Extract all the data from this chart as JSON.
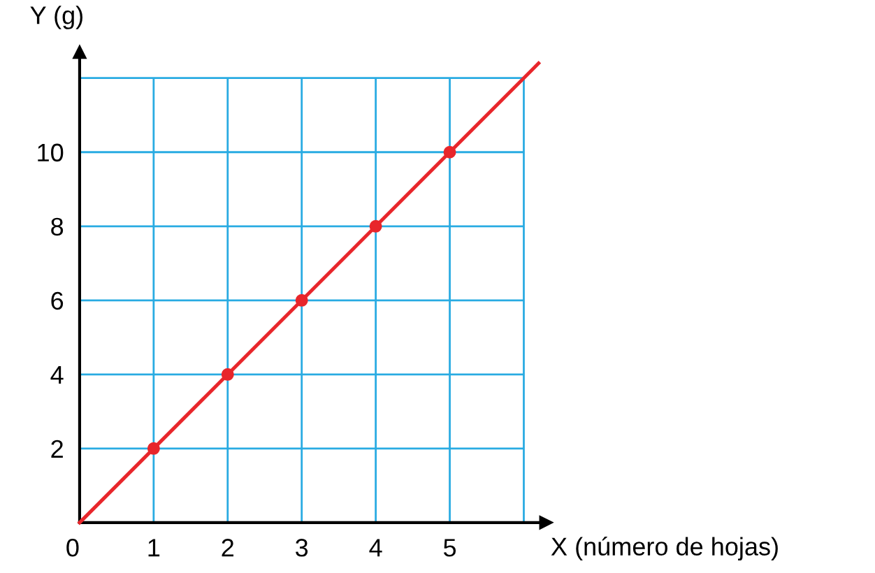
{
  "chart_data": {
    "type": "line",
    "xlabel": "X (número de hojas)",
    "ylabel": "Y (g)",
    "series": [
      {
        "color": "#e8262b",
        "x": [
          0,
          6.2
        ],
        "values": [
          0,
          12.4
        ],
        "marker": "none"
      },
      {
        "type": "scatter",
        "color": "#e8262b",
        "x": [
          1,
          2,
          3,
          4,
          5
        ],
        "values": [
          2,
          4,
          6,
          8,
          10
        ],
        "marker": "circle"
      }
    ],
    "xlim": [
      0,
      6.3
    ],
    "ylim": [
      0,
      12.7
    ],
    "xticks": [
      0,
      1,
      2,
      3,
      4,
      5,
      {
        "value": 6,
        "label": null
      }
    ],
    "yticks": [
      {
        "value": 0,
        "label": null
      },
      2,
      4,
      6,
      8,
      10,
      {
        "value": 12,
        "label": null
      }
    ],
    "grid": true,
    "legend": false
  }
}
